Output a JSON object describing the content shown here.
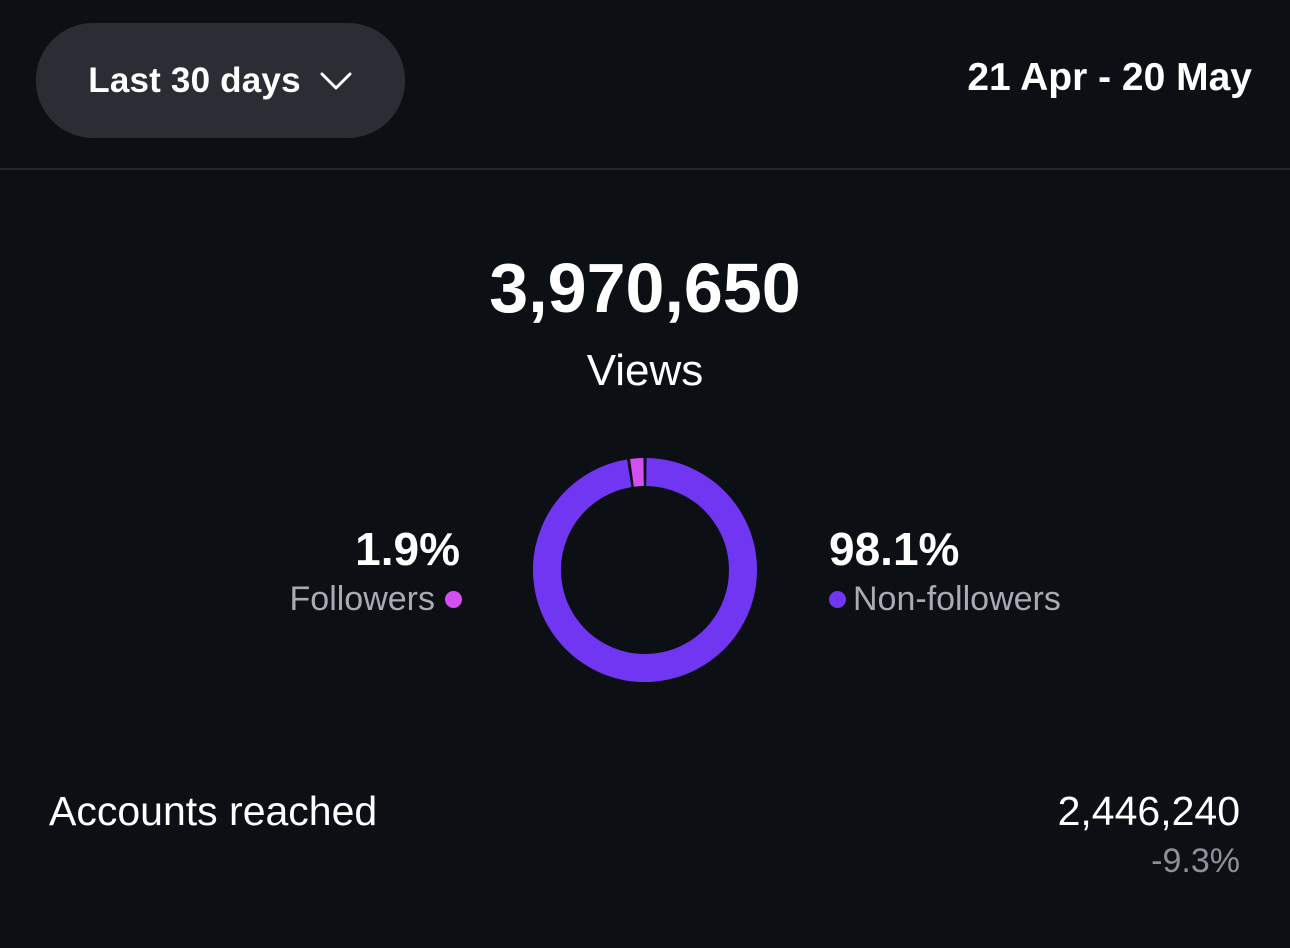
{
  "header": {
    "range_label": "Last 30 days",
    "date_range": "21 Apr - 20 May"
  },
  "views": {
    "total": "3,970,650",
    "label": "Views"
  },
  "breakdown": {
    "followers": {
      "percent_text": "1.9%",
      "label": "Followers",
      "value": 1.9,
      "color": "#d24ff0"
    },
    "non_followers": {
      "percent_text": "98.1%",
      "label": "Non-followers",
      "value": 98.1,
      "color": "#7036f1"
    }
  },
  "accounts_reached": {
    "label": "Accounts reached",
    "value": "2,446,240",
    "change": "-9.3%"
  },
  "colors": {
    "background": "#0c0f14",
    "pill": "#2a2d33",
    "muted_text": "#a8abb3"
  },
  "icons": {
    "dropdown": "chevron-down-icon"
  }
}
